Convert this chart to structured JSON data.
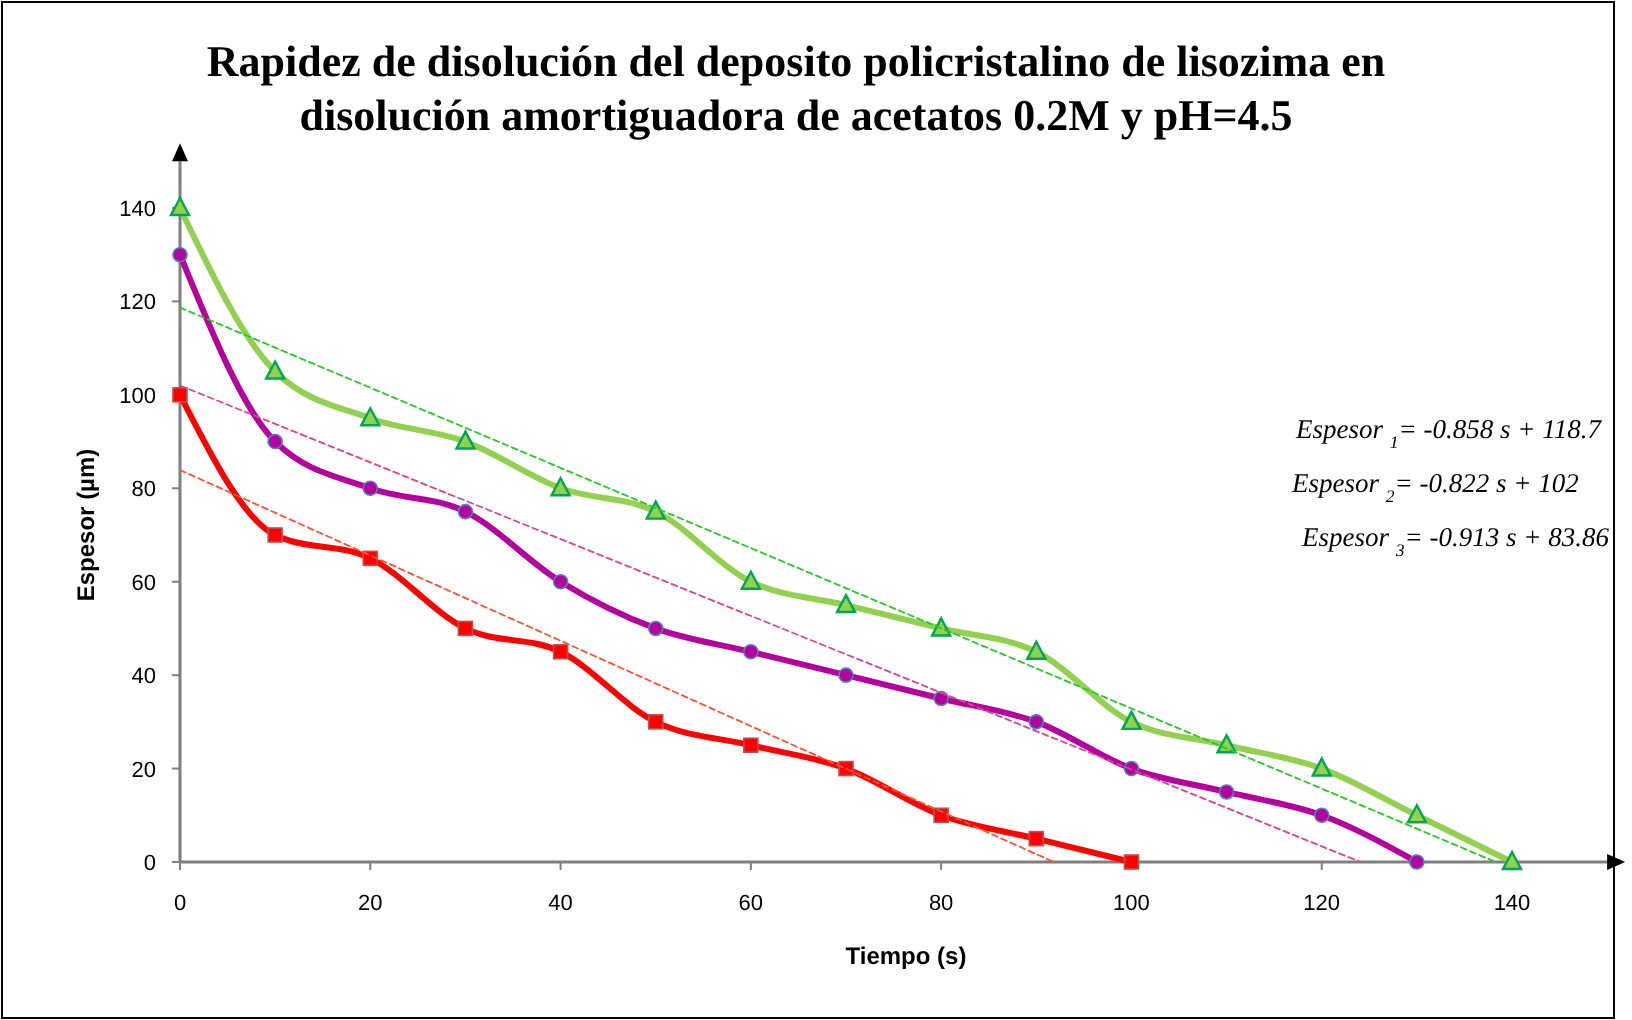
{
  "chart_data": {
    "type": "line",
    "title": "Rapidez de disolución del deposito policristalino de lisozima en disolución amortiguadora de acetatos 0.2M y pH=4.5",
    "xlabel": "Tiempo (s)",
    "ylabel": "Espesor (µm)",
    "xlim": [
      0,
      150
    ],
    "ylim": [
      0,
      150
    ],
    "xticks": [
      0,
      20,
      40,
      60,
      80,
      100,
      120,
      140
    ],
    "yticks": [
      0,
      20,
      40,
      60,
      80,
      100,
      120,
      140
    ],
    "grid": false,
    "series": [
      {
        "color": "#92d050",
        "marker": "triangle",
        "x": [
          0,
          10,
          20,
          30,
          40,
          50,
          60,
          70,
          80,
          90,
          100,
          110,
          120,
          130,
          140
        ],
        "values": [
          140,
          105,
          95,
          90,
          80,
          75,
          60,
          55,
          50,
          45,
          30,
          25,
          20,
          10,
          0
        ]
      },
      {
        "color": "#b5009e",
        "marker": "circle",
        "x": [
          0,
          10,
          20,
          30,
          40,
          50,
          60,
          70,
          80,
          90,
          100,
          110,
          120,
          130
        ],
        "values": [
          130,
          90,
          80,
          75,
          60,
          50,
          45,
          40,
          35,
          30,
          20,
          15,
          10,
          0
        ]
      },
      {
        "color": "#ff0000",
        "marker": "square",
        "x": [
          0,
          10,
          20,
          30,
          40,
          50,
          60,
          70,
          80,
          90,
          100
        ],
        "values": [
          100,
          70,
          65,
          50,
          45,
          30,
          25,
          20,
          10,
          5,
          0
        ]
      },
      {
        "color": "#22cc22",
        "marker": "none",
        "line_style": "dashed",
        "x": [
          0,
          138.3
        ],
        "values": [
          118.7,
          0
        ]
      },
      {
        "color": "#e0409a",
        "marker": "none",
        "line_style": "dashed",
        "x": [
          0,
          124.1
        ],
        "values": [
          102,
          0
        ]
      },
      {
        "color": "#ff5030",
        "marker": "none",
        "line_style": "dashed",
        "x": [
          0,
          91.85
        ],
        "values": [
          83.9,
          0
        ]
      }
    ],
    "annotations": [
      "Espesor $_{1}$= -0.858 s + 118.7",
      "Espesor $_{2}$= -0.822 s + 102",
      "Espesor $_{3}$= -0.913 s + 83.86"
    ]
  }
}
